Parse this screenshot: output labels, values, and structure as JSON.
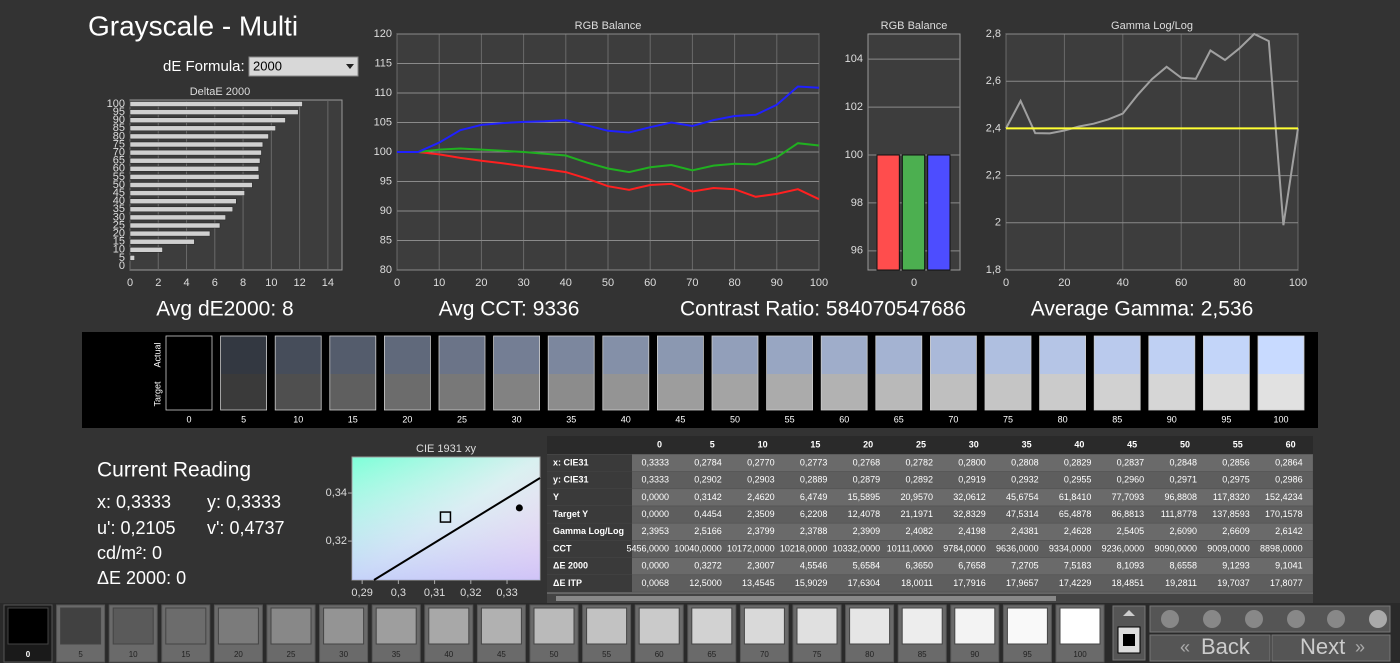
{
  "header": {
    "title": "Grayscale - Multi",
    "formula_label": "dE Formula:",
    "formula_value": "2000"
  },
  "chart_data": [
    {
      "type": "hbar",
      "title": "DeltaE 2000",
      "categories": [
        "0",
        "5",
        "10",
        "15",
        "20",
        "25",
        "30",
        "35",
        "40",
        "45",
        "50",
        "55",
        "60",
        "65",
        "70",
        "75",
        "80",
        "85",
        "90",
        "95",
        "100"
      ],
      "values": [
        0,
        0.3272,
        2.3007,
        4.5546,
        5.6584,
        6.365,
        6.7658,
        7.2705,
        7.5183,
        8.1093,
        8.6558,
        9.1293,
        9.1041,
        9.2,
        9.3,
        9.4,
        9.8,
        10.3,
        11.0,
        11.9,
        12.2
      ],
      "color": "#d0d0d0",
      "xlim": [
        0,
        15
      ],
      "xticks": [
        0,
        2,
        4,
        6,
        8,
        10,
        12,
        14
      ],
      "grid": true
    },
    {
      "type": "line",
      "title": "RGB Balance",
      "x": [
        0,
        5,
        10,
        15,
        20,
        25,
        30,
        35,
        40,
        45,
        50,
        55,
        60,
        65,
        70,
        75,
        80,
        85,
        90,
        95,
        100
      ],
      "series": [
        {
          "color": "#ff2020",
          "values": [
            100,
            100,
            99.6,
            99.0,
            98.5,
            98.1,
            97.6,
            97.1,
            96.6,
            95.5,
            94.2,
            93.6,
            94.4,
            94.6,
            93.3,
            93.9,
            93.7,
            92.4,
            92.9,
            93.7,
            92.0
          ]
        },
        {
          "color": "#20b020",
          "values": [
            100,
            100,
            100.4,
            100.6,
            100.4,
            100.2,
            100.0,
            99.7,
            99.4,
            98.2,
            97.2,
            96.6,
            97.4,
            97.8,
            96.9,
            97.7,
            98.0,
            97.9,
            99.1,
            101.5,
            101.1
          ]
        },
        {
          "color": "#2020ff",
          "values": [
            100,
            100,
            101.6,
            103.7,
            104.6,
            104.9,
            105.1,
            105.2,
            105.4,
            104.5,
            103.6,
            103.3,
            104.2,
            105.0,
            104.4,
            105.4,
            106.1,
            106.3,
            108.0,
            111.1,
            110.9
          ]
        }
      ],
      "xlim": [
        0,
        100
      ],
      "ylim": [
        80,
        120
      ],
      "xticks": [
        0,
        10,
        20,
        30,
        40,
        50,
        60,
        70,
        80,
        90,
        100
      ],
      "yticks": [
        80,
        85,
        90,
        95,
        100,
        105,
        110,
        115,
        120
      ],
      "grid": true
    },
    {
      "type": "bar",
      "title": "RGB Balance",
      "categories": [
        "0"
      ],
      "series": [
        {
          "color": "#ff4d4d",
          "values": [
            100
          ]
        },
        {
          "color": "#4caf50",
          "values": [
            100
          ]
        },
        {
          "color": "#4d4dff",
          "values": [
            100
          ]
        }
      ],
      "ylim": [
        95.2,
        105.05
      ],
      "yticks": [
        96,
        98,
        100,
        102,
        104
      ],
      "grid": true
    },
    {
      "type": "line",
      "title": "Gamma Log/Log",
      "x": [
        0,
        5,
        10,
        15,
        20,
        25,
        30,
        35,
        40,
        45,
        50,
        55,
        60,
        65,
        70,
        75,
        80,
        85,
        90,
        95,
        100
      ],
      "series": [
        {
          "color": "#a0a0a0",
          "values": [
            2.4,
            2.5166,
            2.3799,
            2.3788,
            2.3909,
            2.4082,
            2.4198,
            2.4381,
            2.4628,
            2.5405,
            2.609,
            2.6609,
            2.6142,
            2.61,
            2.73,
            2.69,
            2.74,
            2.8,
            2.77,
            1.99,
            2.4
          ]
        },
        {
          "color": "#ffff33",
          "values": [
            2.4,
            2.4,
            2.4,
            2.4,
            2.4,
            2.4,
            2.4,
            2.4,
            2.4,
            2.4,
            2.4,
            2.4,
            2.4,
            2.4,
            2.4,
            2.4,
            2.4,
            2.4,
            2.4,
            2.4,
            2.4
          ]
        }
      ],
      "xlim": [
        0,
        100
      ],
      "ylim": [
        1.8,
        2.8
      ],
      "xticks": [
        0,
        20,
        40,
        60,
        80,
        100
      ],
      "yticks": [
        {
          "value": 1.8,
          "label": "1,8"
        },
        2,
        {
          "value": 2.2,
          "label": "2,2"
        },
        {
          "value": 2.4,
          "label": "2,4"
        },
        {
          "value": 2.6,
          "label": "2,6"
        },
        {
          "value": 2.8,
          "label": "2,8"
        }
      ],
      "grid": true
    },
    {
      "type": "scatter",
      "title": "CIE 1931 xy",
      "series": [
        {
          "marker": "square",
          "color": "#000000",
          "x": [
            0.313
          ],
          "values": [
            0.33
          ]
        },
        {
          "marker": "dot",
          "color": "#000000",
          "x": [
            0.3334
          ],
          "values": [
            0.3338
          ]
        }
      ],
      "xlim": [
        0.2872,
        0.3391
      ],
      "ylim": [
        0.3038,
        0.355
      ],
      "xticks": [
        {
          "value": 0.29,
          "label": "0,29"
        },
        {
          "value": 0.3,
          "label": "0,3"
        },
        {
          "value": 0.31,
          "label": "0,31"
        },
        {
          "value": 0.32,
          "label": "0,32"
        },
        {
          "value": 0.33,
          "label": "0,33"
        }
      ],
      "yticks": [
        {
          "value": 0.32,
          "label": "0,32"
        },
        {
          "value": 0.34,
          "label": "0,34"
        }
      ],
      "grid": false
    }
  ],
  "summary": [
    "Avg dE2000: 8",
    "Avg CCT: 9336",
    "Contrast Ratio: 584070547686",
    "Average Gamma: 2,536"
  ],
  "swatches": {
    "row_labels": [
      "Actual",
      "Target"
    ],
    "levels": [
      "0",
      "5",
      "10",
      "15",
      "20",
      "25",
      "30",
      "35",
      "40",
      "45",
      "50",
      "55",
      "60",
      "65",
      "70",
      "75",
      "80",
      "85",
      "90",
      "95",
      "100"
    ]
  },
  "reading": {
    "title": "Current Reading",
    "x": "x: 0,3333",
    "y": "y: 0,3333",
    "u": "u': 0,2105",
    "v": "v': 0,4737",
    "luminance": "cd/m²: 0",
    "de": "ΔE 2000: 0"
  },
  "table": {
    "columns": [
      "0",
      "5",
      "10",
      "15",
      "20",
      "25",
      "30",
      "35",
      "40",
      "45",
      "50",
      "55",
      "60"
    ],
    "rows": [
      {
        "label": "x: CIE31",
        "cells": [
          "0,3333",
          "0,2784",
          "0,2770",
          "0,2773",
          "0,2768",
          "0,2782",
          "0,2800",
          "0,2808",
          "0,2829",
          "0,2837",
          "0,2848",
          "0,2856",
          "0,2864"
        ]
      },
      {
        "label": "y: CIE31",
        "cells": [
          "0,3333",
          "0,2902",
          "0,2903",
          "0,2889",
          "0,2879",
          "0,2892",
          "0,2919",
          "0,2932",
          "0,2955",
          "0,2960",
          "0,2971",
          "0,2975",
          "0,2986"
        ]
      },
      {
        "label": "Y",
        "cells": [
          "0,0000",
          "0,3142",
          "2,4620",
          "6,4749",
          "15,5895",
          "20,9570",
          "32,0612",
          "45,6754",
          "61,8410",
          "77,7093",
          "96,8808",
          "117,8320",
          "152,4234"
        ]
      },
      {
        "label": "Target Y",
        "cells": [
          "0,0000",
          "0,4454",
          "2,3509",
          "6,2208",
          "12,4078",
          "21,1971",
          "32,8329",
          "47,5314",
          "65,4878",
          "86,8813",
          "111,8778",
          "137,8593",
          "170,1578"
        ]
      },
      {
        "label": "Gamma Log/Log",
        "cells": [
          "2,3953",
          "2,5166",
          "2,3799",
          "2,3788",
          "2,3909",
          "2,4082",
          "2,4198",
          "2,4381",
          "2,4628",
          "2,5405",
          "2,6090",
          "2,6609",
          "2,6142"
        ]
      },
      {
        "label": "CCT",
        "cells": [
          "5456,0000",
          "10040,0000",
          "10172,0000",
          "10218,0000",
          "10332,0000",
          "10111,0000",
          "9784,0000",
          "9636,0000",
          "9334,0000",
          "9236,0000",
          "9090,0000",
          "9009,0000",
          "8898,0000"
        ]
      },
      {
        "label": "ΔE 2000",
        "cells": [
          "0,0000",
          "0,3272",
          "2,3007",
          "4,5546",
          "5,6584",
          "6,3650",
          "6,7658",
          "7,2705",
          "7,5183",
          "8,1093",
          "8,6558",
          "9,1293",
          "9,1041"
        ]
      },
      {
        "label": "ΔE ITP",
        "cells": [
          "0,0068",
          "12,5000",
          "13,4545",
          "15,9029",
          "17,6304",
          "18,0011",
          "17,7916",
          "17,9657",
          "17,4229",
          "18,4851",
          "19,2811",
          "19,7037",
          "17,8077"
        ]
      }
    ]
  },
  "patches": {
    "levels": [
      "0",
      "5",
      "10",
      "15",
      "20",
      "25",
      "30",
      "35",
      "40",
      "45",
      "50",
      "55",
      "60",
      "65",
      "70",
      "75",
      "80",
      "85",
      "90",
      "95",
      "100"
    ]
  },
  "buttons": {
    "back": "Back",
    "next": "Next"
  }
}
